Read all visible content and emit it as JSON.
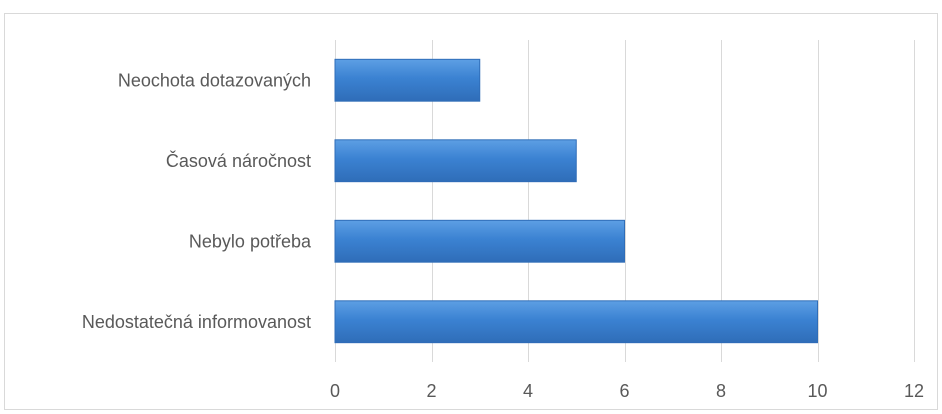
{
  "chart_data": {
    "type": "bar",
    "orientation": "horizontal",
    "categories": [
      "Nedostatečná informovanost",
      "Nebylo potřeba",
      "Časová náročnost",
      "Neochota dotazovaných"
    ],
    "values": [
      10,
      6,
      5,
      3
    ],
    "xlim": [
      0,
      12
    ],
    "xticks": [
      "0",
      "2",
      "4",
      "6",
      "8",
      "10",
      "12"
    ],
    "grid": true,
    "legend": "none",
    "colors": {
      "bar": "#3b82d2",
      "bar_dark": "#2f6db8",
      "bar_light": "#5d9fe4",
      "grid": "#d9d9d9",
      "text": "#595959"
    }
  }
}
